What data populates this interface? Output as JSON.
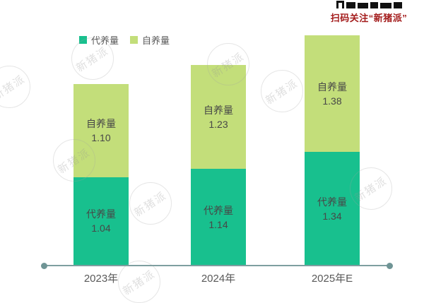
{
  "header": {
    "caption": "扫码关注“新猪派”"
  },
  "legend": {
    "items": [
      {
        "label": "代养量",
        "color": "#18c08e"
      },
      {
        "label": "自养量",
        "color": "#c3de7a"
      }
    ]
  },
  "watermark": {
    "text": "新猪派"
  },
  "chart_data": {
    "type": "bar",
    "stacked": true,
    "categories": [
      "2023年",
      "2024年",
      "2025年E"
    ],
    "series": [
      {
        "name": "代养量",
        "color": "#18c08e",
        "values": [
          1.04,
          1.14,
          1.34
        ]
      },
      {
        "name": "自养量",
        "color": "#c3de7a",
        "values": [
          1.1,
          1.23,
          1.38
        ]
      }
    ],
    "value_labels_inside_bars": true,
    "ylabel": "",
    "xlabel": "",
    "ylim": [
      0,
      2.9
    ],
    "grid": false,
    "legend_position": "top-left",
    "axis_color": "#7e9fa0",
    "label_color": "#474747"
  }
}
